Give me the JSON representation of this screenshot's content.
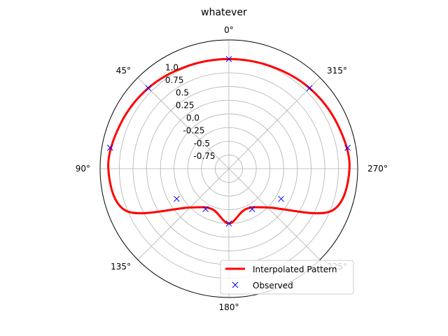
{
  "chart_data": {
    "type": "line",
    "subtype": "polar",
    "title": "whatever",
    "theta_zero_location": "top",
    "theta_direction": "counterclockwise",
    "theta_tick_labels": [
      "0°",
      "45°",
      "90°",
      "135°",
      "180°",
      "225°",
      "270°",
      "315°"
    ],
    "theta_ticks_deg": [
      0,
      45,
      90,
      135,
      180,
      225,
      270,
      315
    ],
    "radial_ticks": [
      -0.75,
      -0.5,
      -0.25,
      0.0,
      0.25,
      0.5,
      0.75,
      1.0
    ],
    "radial_tick_labels": [
      "-0.75",
      "-0.5",
      "-0.25",
      "0.0",
      "0.25",
      "0.5",
      "0.75",
      "1.0"
    ],
    "rlim": [
      -1.0,
      1.35
    ],
    "radial_label_angle_deg": 22.5,
    "grid": true,
    "legend_position": "lower right",
    "series": [
      {
        "name": "Interpolated Pattern",
        "style": "line",
        "color": "#ff0000",
        "theta_deg": [
          0,
          22.5,
          45,
          67.5,
          90,
          112.5,
          135,
          157.5,
          180,
          202.5,
          225,
          247.5,
          270,
          292.5,
          315,
          337.5,
          360
        ],
        "r": [
          1.0,
          1.02,
          1.08,
          1.14,
          1.2,
          1.02,
          0.0,
          -0.2,
          0.0,
          -0.2,
          0.0,
          1.02,
          1.2,
          1.14,
          1.08,
          1.02,
          1.0
        ]
      },
      {
        "name": "Observed",
        "style": "markers",
        "marker": "x",
        "color": "#0000ff",
        "theta_deg": [
          0,
          45,
          80,
          120,
          150,
          180,
          210,
          240,
          280,
          315
        ],
        "r": [
          1.0,
          1.08,
          1.2,
          0.1,
          -0.15,
          0.0,
          -0.15,
          0.1,
          1.2,
          1.08
        ]
      }
    ]
  }
}
